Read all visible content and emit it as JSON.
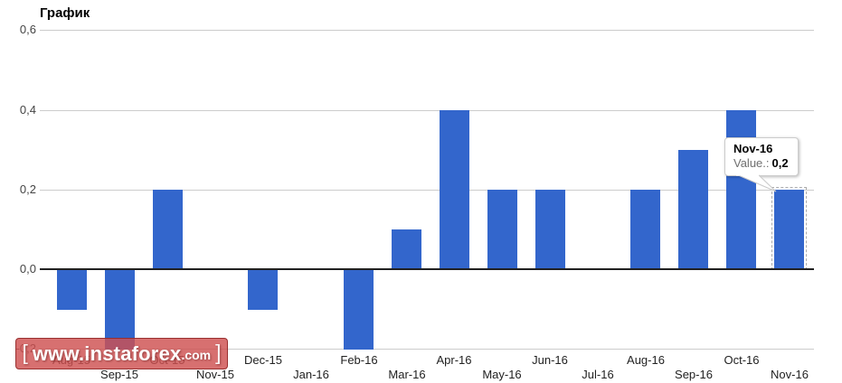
{
  "chart_data": {
    "type": "bar",
    "title": "График",
    "categories": [
      "Aug-15",
      "Sep-15",
      "Oct-15",
      "Nov-15",
      "Dec-15",
      "Jan-16",
      "Feb-16",
      "Mar-16",
      "Apr-16",
      "May-16",
      "Jun-16",
      "Jul-16",
      "Aug-16",
      "Sep-16",
      "Oct-16",
      "Nov-16"
    ],
    "values": [
      -0.1,
      -0.2,
      0.2,
      0,
      -0.1,
      0,
      -0.2,
      0.1,
      0.4,
      0.2,
      0.2,
      0,
      0.2,
      0.3,
      0.4,
      0.2
    ],
    "xlabel": "",
    "ylabel": "",
    "ylim": [
      -0.2,
      0.6
    ],
    "ytick_labels": [
      "0,6",
      "0,4",
      "0,2",
      "0,0",
      "-0,2"
    ],
    "ytick_values": [
      0.6,
      0.4,
      0.2,
      0.0,
      -0.2
    ],
    "grid": true,
    "legend": "none",
    "bar_color": "#3366cc",
    "selected_index": 15,
    "selected_category": "Nov-16"
  },
  "tooltip": {
    "title": "Nov-16",
    "value_label": "Value.:",
    "value": "0,2"
  },
  "watermark": {
    "open_bracket": "[",
    "domain": "www.instaforex",
    "tld": ".com",
    "close_bracket": "]"
  },
  "colors": {
    "bar": "#3366cc",
    "gridline": "#cccccc",
    "zero_line": "#212121",
    "y_label": "#444444",
    "x_label": "#222222",
    "tooltip_border": "#cccccc",
    "watermark_background": "#ce5050"
  }
}
